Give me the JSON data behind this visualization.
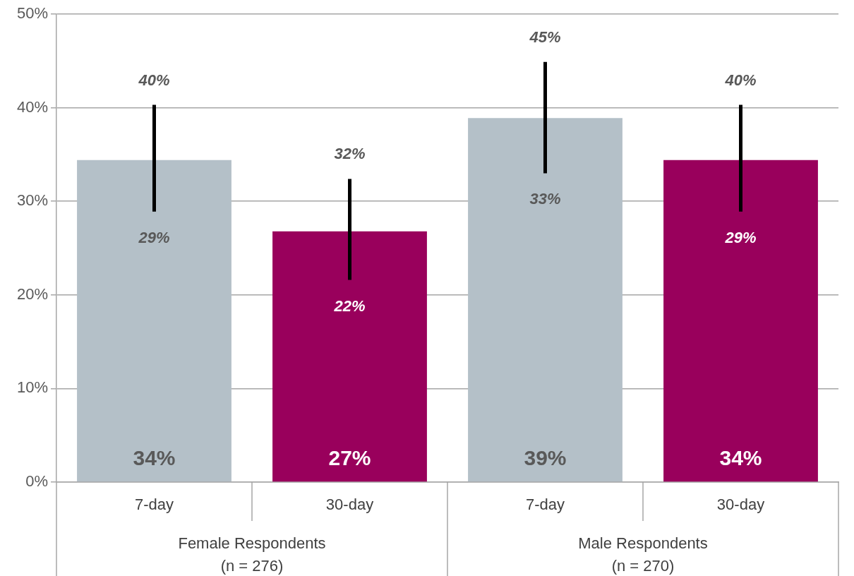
{
  "chart_data": {
    "type": "bar",
    "categories": [
      "7-day",
      "30-day",
      "7-day",
      "30-day"
    ],
    "values": [
      34.4,
      26.8,
      38.9,
      34.4
    ],
    "colors": [
      "#b4c0c8",
      "#99005c",
      "#b4c0c8",
      "#99005c"
    ],
    "value_labels": [
      "34%",
      "27%",
      "39%",
      "34%"
    ],
    "errors": [
      [
        28.9,
        40.3
      ],
      [
        21.6,
        32.4
      ],
      [
        33.0,
        44.9
      ],
      [
        28.9,
        40.3
      ]
    ],
    "ylim": [
      0,
      50
    ],
    "yticks": [
      {
        "value": 0,
        "label": "0%"
      },
      {
        "value": 10,
        "label": "10%"
      },
      {
        "value": 20,
        "label": "20%"
      },
      {
        "value": 30,
        "label": "30%"
      },
      {
        "value": 40,
        "label": "40%"
      },
      {
        "value": 50,
        "label": "50%"
      }
    ],
    "grid": "y",
    "legend": false,
    "annotations": [
      "Female Respondents\n(n = 276)",
      "Male Respondents\n(n = 270)",
      {
        "text": "40%",
        "y": 40.3
      },
      {
        "text": "29%",
        "y": 28.9
      },
      {
        "text": "32%",
        "y": 32.4
      },
      {
        "text": "22%",
        "y": 21.6
      },
      {
        "text": "45%",
        "y": 44.9
      },
      {
        "text": "33%",
        "y": 33.0
      },
      {
        "text": "40%",
        "y": 40.3
      },
      {
        "text": "29%",
        "y": 28.9
      }
    ]
  }
}
